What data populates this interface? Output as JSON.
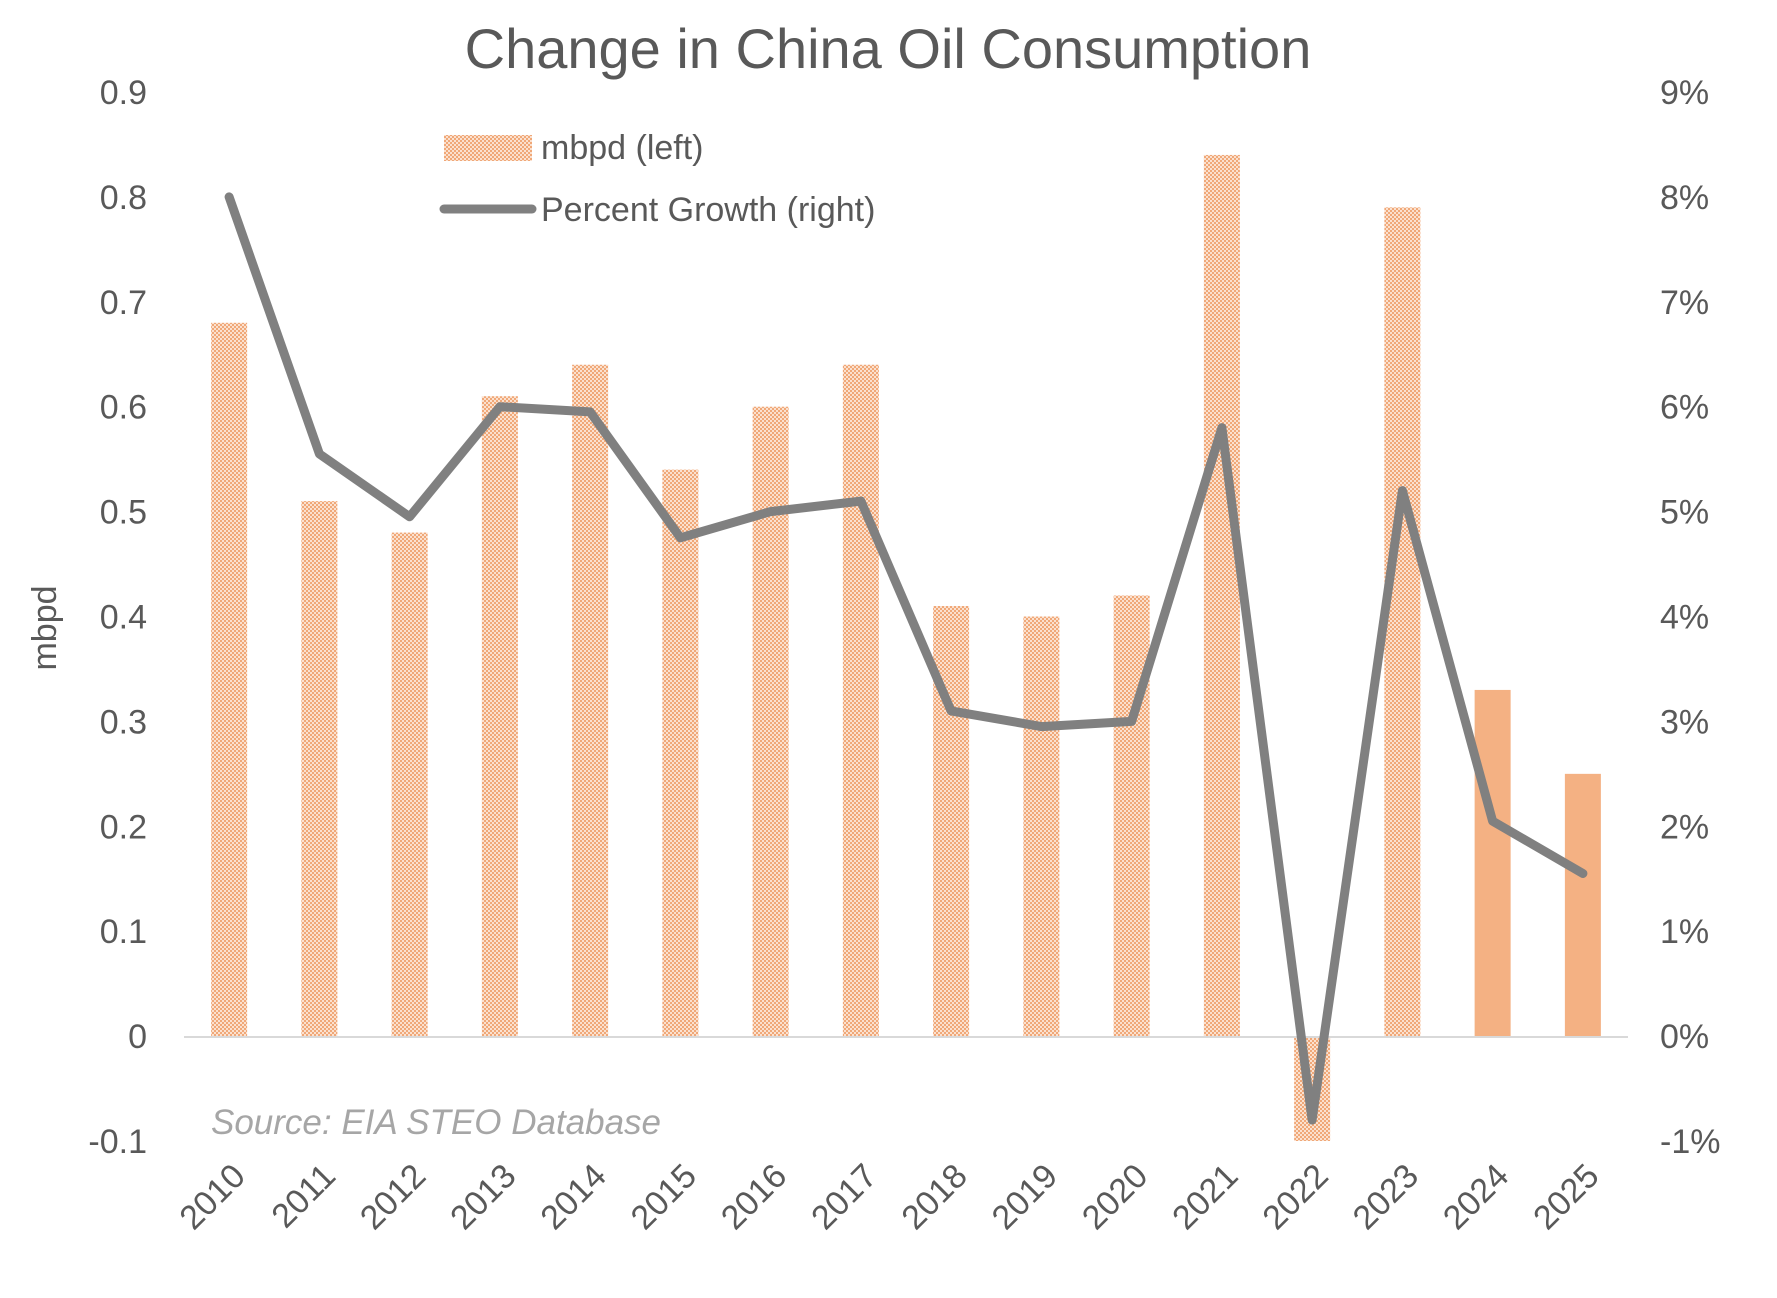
{
  "chart_data": {
    "type": "bar+line",
    "title": "Change in China Oil Consumption",
    "ylabel": "mbpd",
    "xlabel": "",
    "source_note": "Source: EIA STEO Database",
    "categories": [
      "2010",
      "2011",
      "2012",
      "2013",
      "2014",
      "2015",
      "2016",
      "2017",
      "2018",
      "2019",
      "2020",
      "2021",
      "2022",
      "2023",
      "2024",
      "2025"
    ],
    "series": [
      {
        "name": "mbpd (left)",
        "kind": "bar",
        "axis": "left",
        "values": [
          0.68,
          0.51,
          0.48,
          0.61,
          0.64,
          0.54,
          0.6,
          0.64,
          0.41,
          0.4,
          0.42,
          0.84,
          -0.1,
          0.79,
          0.33,
          0.25
        ],
        "forecast_from_index": 14
      },
      {
        "name": "Percent Growth (right)",
        "kind": "line",
        "axis": "right",
        "values": [
          8.0,
          5.55,
          4.95,
          6.0,
          5.95,
          4.75,
          5.0,
          5.1,
          3.1,
          2.95,
          3.0,
          5.8,
          -0.8,
          5.2,
          2.05,
          1.55
        ]
      }
    ],
    "left_axis": {
      "range": [
        -0.1,
        0.9
      ],
      "ticks": [
        -0.1,
        0,
        0.1,
        0.2,
        0.3,
        0.4,
        0.5,
        0.6,
        0.7,
        0.8,
        0.9
      ],
      "tick_labels": [
        "-0.1",
        "0",
        "0.1",
        "0.2",
        "0.3",
        "0.4",
        "0.5",
        "0.6",
        "0.7",
        "0.8",
        "0.9"
      ]
    },
    "right_axis": {
      "range": [
        -1,
        9
      ],
      "ticks": [
        -1,
        0,
        1,
        2,
        3,
        4,
        5,
        6,
        7,
        8,
        9
      ],
      "tick_labels": [
        "-1%",
        "0%",
        "1%",
        "2%",
        "3%",
        "4%",
        "5%",
        "6%",
        "7%",
        "8%",
        "9%"
      ]
    },
    "legend": [
      {
        "label": "mbpd (left)",
        "swatch": "hatched-bar"
      },
      {
        "label": "Percent Growth (right)",
        "swatch": "line"
      }
    ],
    "grid": false,
    "legend_position": "top-left"
  },
  "colors": {
    "bar": "#f4b183",
    "bar_hatch": "#f8cbad",
    "line": "#808080",
    "text": "#595959",
    "axis": "#d9d9d9",
    "source": "#a6a6a6"
  }
}
